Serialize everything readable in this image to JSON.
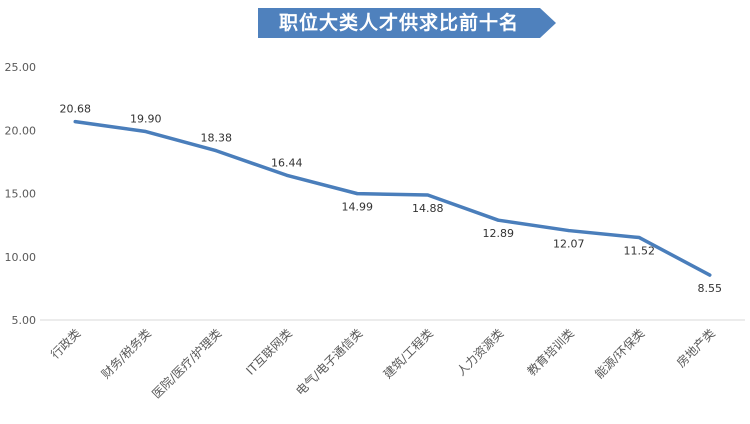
{
  "chart_data": {
    "type": "line",
    "title": "职位大类人才供求比前十名",
    "categories": [
      "行政类",
      "财务/税务类",
      "医院/医疗/护理类",
      "IT互联网类",
      "电气/电子通信类",
      "建筑/工程类",
      "人力资源类",
      "教育培训类",
      "能源/环保类",
      "房地产类"
    ],
    "series": [
      {
        "values": [
          20.68,
          19.9,
          18.38,
          16.44,
          14.99,
          14.88,
          12.89,
          12.07,
          11.52,
          8.55
        ]
      }
    ],
    "data_labels": [
      "20.68",
      "19.90",
      "18.38",
      "16.44",
      "14.99",
      "14.88",
      "12.89",
      "12.07",
      "11.52",
      "8.55"
    ],
    "y_ticks": [
      "5.00",
      "10.00",
      "15.00",
      "20.00",
      "25.00"
    ],
    "ylim": [
      5,
      25
    ],
    "grid": false,
    "legend": "none",
    "colors": {
      "line": "#4a7ebb",
      "banner": "#4f81bd",
      "axis": "#d9d9d9",
      "text": "#333333",
      "tick": "#595959"
    }
  }
}
